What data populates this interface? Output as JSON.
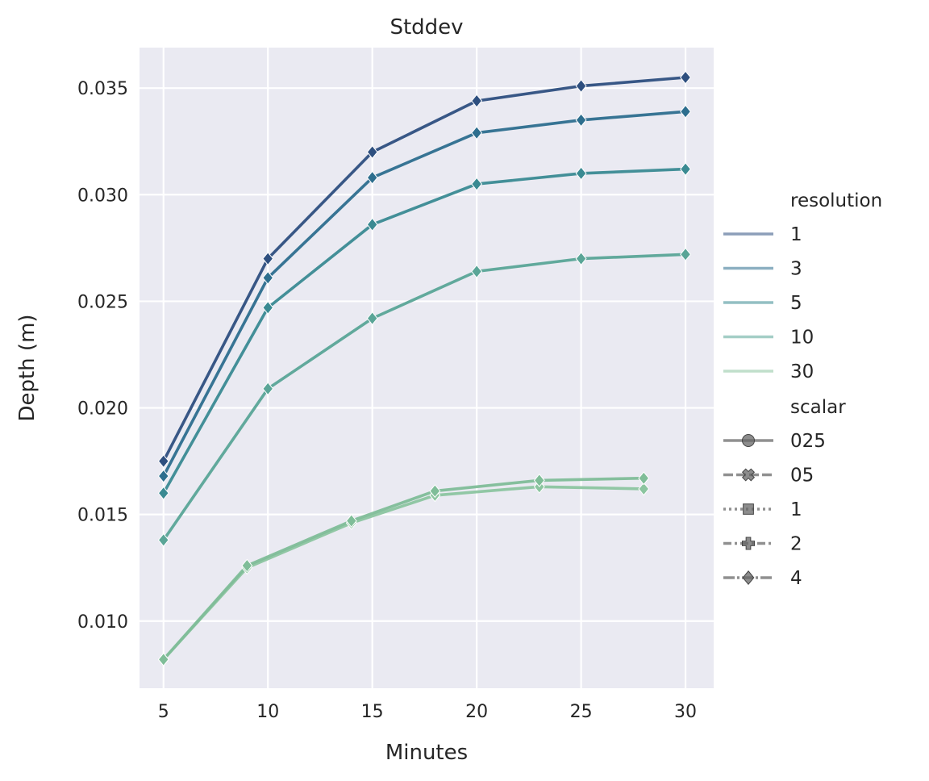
{
  "chart_data": {
    "type": "line",
    "title": "Stddev",
    "xlabel": "Minutes",
    "ylabel": "Depth (m)",
    "xlim": [
      3.85,
      31.35
    ],
    "ylim": [
      0.00685,
      0.0369
    ],
    "xticks": [
      5,
      10,
      15,
      20,
      25,
      30
    ],
    "yticks": [
      0.01,
      0.015,
      0.02,
      0.025,
      0.03,
      0.035
    ],
    "ytick_labels": [
      "0.010",
      "0.015",
      "0.020",
      "0.025",
      "0.030",
      "0.035"
    ],
    "grid": true,
    "background": "#eaeaf2",
    "legend_position": "right",
    "legend": {
      "hue_title": "resolution",
      "hue_entries": [
        {
          "label": "1",
          "color": "#2e4f7f"
        },
        {
          "label": "3",
          "color": "#2d6e8e"
        },
        {
          "label": "5",
          "color": "#3a8a92"
        },
        {
          "label": "10",
          "color": "#5aa597"
        },
        {
          "label": "30",
          "color": "#8cc5a0"
        }
      ],
      "style_title": "scalar",
      "style_entries": [
        {
          "label": "025",
          "marker": "circle",
          "dash": ""
        },
        {
          "label": "05",
          "marker": "x",
          "dash": "12 4"
        },
        {
          "label": "1",
          "marker": "square",
          "dash": "3 4"
        },
        {
          "label": "2",
          "marker": "plus",
          "dash": "10 4 3 4"
        },
        {
          "label": "4",
          "marker": "diamond",
          "dash": "14 3 3 3"
        }
      ]
    },
    "series": [
      {
        "resolution": "1",
        "color": "#2e4f7f",
        "x": [
          5,
          10,
          15,
          20,
          25,
          30
        ],
        "y": [
          0.0175,
          0.027,
          0.032,
          0.0344,
          0.0351,
          0.0355
        ]
      },
      {
        "resolution": "3",
        "color": "#2d6e8e",
        "x": [
          5,
          10,
          15,
          20,
          25,
          30
        ],
        "y": [
          0.0168,
          0.0261,
          0.0308,
          0.0329,
          0.0335,
          0.0339
        ]
      },
      {
        "resolution": "5",
        "color": "#3a8a92",
        "x": [
          5,
          10,
          15,
          20,
          25,
          30
        ],
        "y": [
          0.016,
          0.0247,
          0.0286,
          0.0305,
          0.031,
          0.0312
        ]
      },
      {
        "resolution": "10",
        "color": "#5aa597",
        "x": [
          5,
          10,
          15,
          20,
          25,
          30
        ],
        "y": [
          0.0138,
          0.0209,
          0.0242,
          0.0264,
          0.027,
          0.0272
        ]
      },
      {
        "resolution": "30",
        "color": "#8cc5a0",
        "x": [
          5,
          9,
          14,
          18,
          23,
          28
        ],
        "y": [
          0.0082,
          0.0125,
          0.0146,
          0.0159,
          0.0163,
          0.0162
        ]
      },
      {
        "resolution": "30",
        "color": "#7fbd98",
        "x": [
          5,
          9,
          14,
          18,
          23,
          28
        ],
        "y": [
          0.0082,
          0.0126,
          0.0147,
          0.0161,
          0.0166,
          0.0167
        ]
      }
    ]
  }
}
